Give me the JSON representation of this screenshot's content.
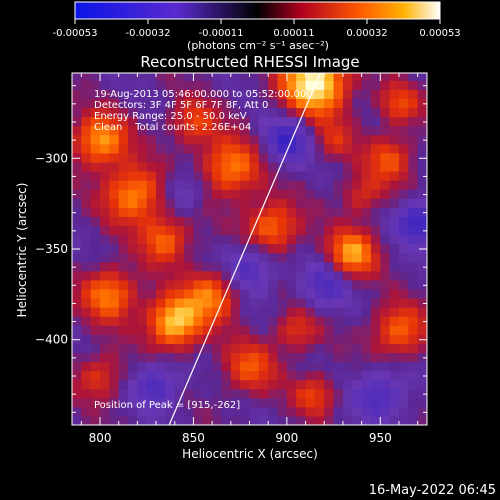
{
  "colorbar": {
    "ticks": [
      "-0.00053",
      "-0.00032",
      "-0.00011",
      "0.00011",
      "0.00032",
      "0.00053"
    ],
    "units": "(photons cm⁻² s⁻¹ asec⁻²)"
  },
  "footer": {
    "timestamp": "16-May-2022 06:45"
  },
  "chart_data": {
    "type": "heatmap",
    "title": "Reconstructed RHESSI Image",
    "xlabel": "Heliocentric X (arcsec)",
    "ylabel": "Heliocentric Y (arcsec)",
    "xlim": [
      785,
      975
    ],
    "ylim": [
      -447,
      -253
    ],
    "x_ticks": [
      {
        "value": 800,
        "label": "800"
      },
      {
        "value": 850,
        "label": "850"
      },
      {
        "value": 900,
        "label": "900"
      },
      {
        "value": 950,
        "label": "950"
      }
    ],
    "y_ticks": [
      {
        "value": -300,
        "label": "−300"
      },
      {
        "value": -350,
        "label": "−350"
      },
      {
        "value": -400,
        "label": "−400"
      }
    ],
    "color_range": [
      -0.00053,
      0.00053
    ],
    "annotations": [
      "19-Aug-2013 05:46:00.000 to 05:52:00.000",
      "Detectors: 3F 4F 5F 6F 7F 8F, Att 0",
      "Energy Range: 25.0 - 50.0 keV",
      "Clean    Total counts: 2.26E+04"
    ],
    "peak_label": "Position of Peak = [915,-262]",
    "peak": [
      915,
      -262
    ],
    "limb_line": [
      [
        837,
        -447
      ],
      [
        918,
        -253
      ]
    ],
    "sources": [
      {
        "x": 915,
        "y": -258,
        "amp": 1.25,
        "r": 12
      },
      {
        "x": 840,
        "y": -390,
        "amp": 1.05,
        "r": 10
      },
      {
        "x": 800,
        "y": -290,
        "amp": 0.85,
        "r": 10
      },
      {
        "x": 818,
        "y": -320,
        "amp": 0.8,
        "r": 11
      },
      {
        "x": 870,
        "y": -305,
        "amp": 0.75,
        "r": 11
      },
      {
        "x": 892,
        "y": -338,
        "amp": 0.7,
        "r": 10
      },
      {
        "x": 935,
        "y": -352,
        "amp": 0.85,
        "r": 9
      },
      {
        "x": 860,
        "y": -375,
        "amp": 0.7,
        "r": 10
      },
      {
        "x": 805,
        "y": -375,
        "amp": 0.75,
        "r": 10
      },
      {
        "x": 835,
        "y": -345,
        "amp": 0.65,
        "r": 9
      },
      {
        "x": 955,
        "y": -300,
        "amp": 0.55,
        "r": 9
      },
      {
        "x": 960,
        "y": -395,
        "amp": 0.65,
        "r": 10
      },
      {
        "x": 880,
        "y": -415,
        "amp": 0.55,
        "r": 10
      },
      {
        "x": 905,
        "y": -395,
        "amp": 0.45,
        "r": 8
      },
      {
        "x": 915,
        "y": -430,
        "amp": 0.5,
        "r": 8
      },
      {
        "x": 940,
        "y": -320,
        "amp": 0.4,
        "r": 8
      },
      {
        "x": 850,
        "y": -280,
        "amp": 0.5,
        "r": 9
      },
      {
        "x": 960,
        "y": -270,
        "amp": 0.5,
        "r": 8
      },
      {
        "x": 925,
        "y": -290,
        "amp": 0.35,
        "r": 8
      },
      {
        "x": 800,
        "y": -420,
        "amp": 0.45,
        "r": 9
      },
      {
        "x": 900,
        "y": -290,
        "amp": -0.6,
        "r": 9
      },
      {
        "x": 880,
        "y": -360,
        "amp": -0.5,
        "r": 10
      },
      {
        "x": 950,
        "y": -430,
        "amp": -0.5,
        "r": 10
      },
      {
        "x": 920,
        "y": -370,
        "amp": -0.45,
        "r": 9
      },
      {
        "x": 830,
        "y": -425,
        "amp": -0.5,
        "r": 9
      },
      {
        "x": 970,
        "y": -335,
        "amp": -0.7,
        "r": 8
      },
      {
        "x": 845,
        "y": -318,
        "amp": -0.35,
        "r": 8
      }
    ]
  }
}
